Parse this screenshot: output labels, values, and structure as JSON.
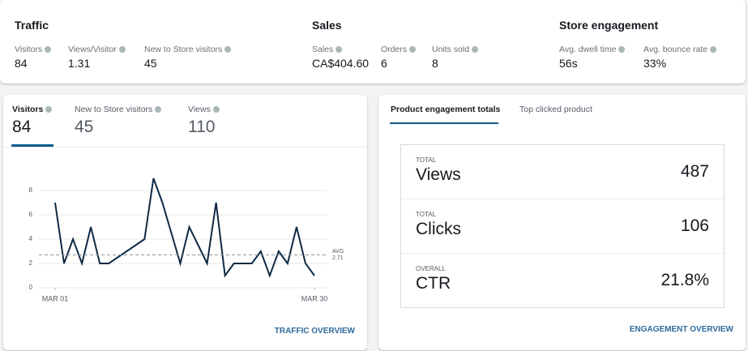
{
  "summary": {
    "sections": [
      {
        "title": "Traffic",
        "metrics": [
          {
            "label": "Visitors",
            "value": "84"
          },
          {
            "label": "Views/Visitor",
            "value": "1.31"
          },
          {
            "label": "New to Store visitors",
            "value": "45"
          }
        ]
      },
      {
        "title": "Sales",
        "metrics": [
          {
            "label": "Sales",
            "value": "CA$404.60"
          },
          {
            "label": "Orders",
            "value": "6"
          },
          {
            "label": "Units sold",
            "value": "8"
          }
        ]
      },
      {
        "title": "Store engagement",
        "metrics": [
          {
            "label": "Avg. dwell time",
            "value": "56s"
          },
          {
            "label": "Avg. bounce rate",
            "value": "33%"
          }
        ]
      }
    ]
  },
  "traffic_panel": {
    "tabs": [
      {
        "label": "Visitors",
        "value": "84"
      },
      {
        "label": "New to Store visitors",
        "value": "45"
      },
      {
        "label": "Views",
        "value": "110"
      }
    ],
    "link": "TRAFFIC OVERVIEW"
  },
  "chart_data": {
    "type": "line",
    "x": [
      1,
      2,
      3,
      4,
      5,
      6,
      7,
      11,
      12,
      13,
      15,
      16,
      17,
      18,
      19,
      20,
      21,
      22,
      23,
      24,
      25,
      26,
      27,
      28,
      29,
      30
    ],
    "values": [
      7,
      2,
      4,
      2,
      5,
      2,
      2,
      4,
      9,
      7,
      2,
      5,
      3.5,
      2,
      7,
      1,
      2,
      2,
      2,
      3,
      1,
      3,
      2,
      5,
      2,
      1
    ],
    "color": "#0f2a44",
    "xlim": [
      1,
      30
    ],
    "xticks": [
      {
        "value": 1,
        "label": "MAR 01"
      },
      {
        "value": 30,
        "label": "MAR 30"
      }
    ],
    "ylim": [
      0,
      9.5
    ],
    "yticks": [
      0,
      2,
      4,
      6,
      8
    ],
    "grid": true,
    "average": {
      "label": "AVG",
      "value": 2.71
    }
  },
  "engagement_panel": {
    "tabs": [
      "Product engagement totals",
      "Top clicked product"
    ],
    "rows": [
      {
        "caption": "TOTAL",
        "label": "Views",
        "value": "487"
      },
      {
        "caption": "TOTAL",
        "label": "Clicks",
        "value": "106"
      },
      {
        "caption": "OVERALL",
        "label": "CTR",
        "value": "21.8%"
      }
    ],
    "link": "ENGAGEMENT OVERVIEW"
  }
}
